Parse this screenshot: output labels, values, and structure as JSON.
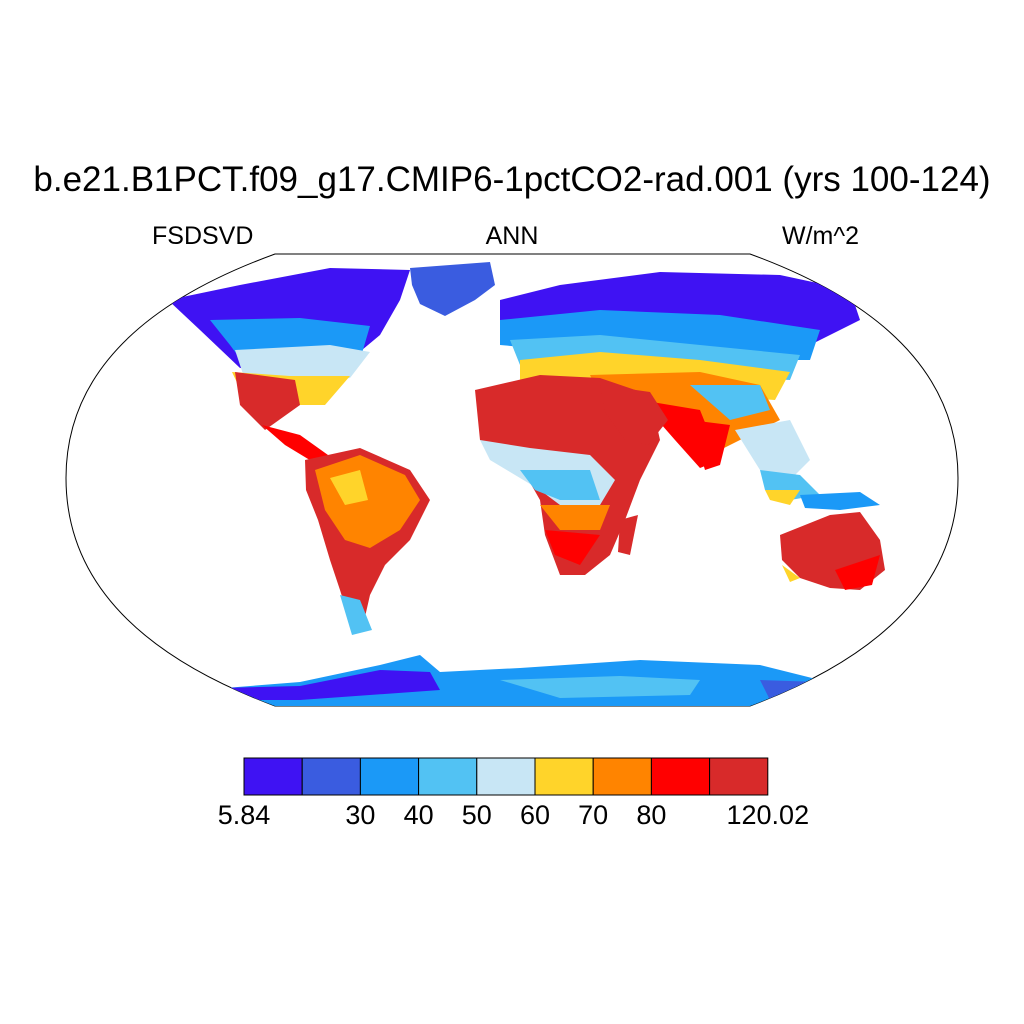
{
  "title": "b.e21.B1PCT.f09_g17.CMIP6-1pctCO2-rad.001 (yrs 100-124)",
  "subtitle_left": "FSDSVD",
  "subtitle_center": "ANN",
  "subtitle_right": "W/m^2",
  "colorbar": {
    "colors": [
      "#3f12f3",
      "#3a5ce0",
      "#1b99f7",
      "#52c2f3",
      "#c8e6f5",
      "#ffd42a",
      "#ff8400",
      "#ff0000",
      "#d82a2a"
    ],
    "tick_labels": [
      "5.84",
      "30",
      "40",
      "50",
      "60",
      "70",
      "80",
      "120.02"
    ]
  }
}
